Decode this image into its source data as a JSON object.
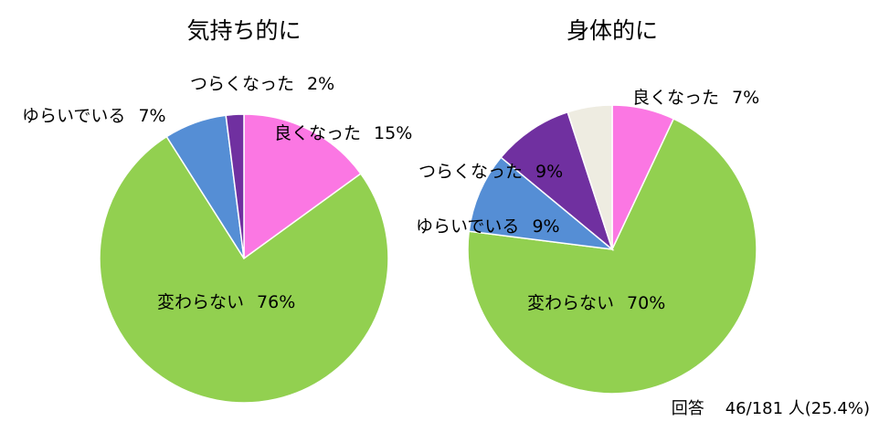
{
  "chart_data": [
    {
      "type": "pie",
      "title": "気持ち的に",
      "slices": [
        {
          "label": "良くなった",
          "value": 15,
          "value_label": "15%",
          "color": "#FB77E3"
        },
        {
          "label": "変わらない",
          "value": 76,
          "value_label": "76%",
          "color": "#92D050"
        },
        {
          "label": "ゆらいでいる",
          "value": 7,
          "value_label": "7%",
          "color": "#558ED5"
        },
        {
          "label": "つらくなった",
          "value": 2,
          "value_label": "2%",
          "color": "#7030A0"
        }
      ],
      "start": "12 o'clock",
      "direction": "clockwise",
      "legend": "none"
    },
    {
      "type": "pie",
      "title": "身体的に",
      "slices": [
        {
          "label": "良くなった",
          "value": 7,
          "value_label": "7%",
          "color": "#FB77E3"
        },
        {
          "label": "変わらない",
          "value": 70,
          "value_label": "70%",
          "color": "#92D050"
        },
        {
          "label": "ゆらいでいる",
          "value": 9,
          "value_label": "9%",
          "color": "#558ED5"
        },
        {
          "label": "つらくなった",
          "value": 9,
          "value_label": "9%",
          "color": "#7030A0"
        },
        {
          "label": "",
          "value": 5,
          "value_label": "",
          "color": "#EEECE1"
        }
      ],
      "start": "12 o'clock",
      "direction": "clockwise",
      "legend": "none"
    }
  ],
  "footnote": {
    "label": "回答",
    "count": "46/181 人(25.4%)"
  }
}
